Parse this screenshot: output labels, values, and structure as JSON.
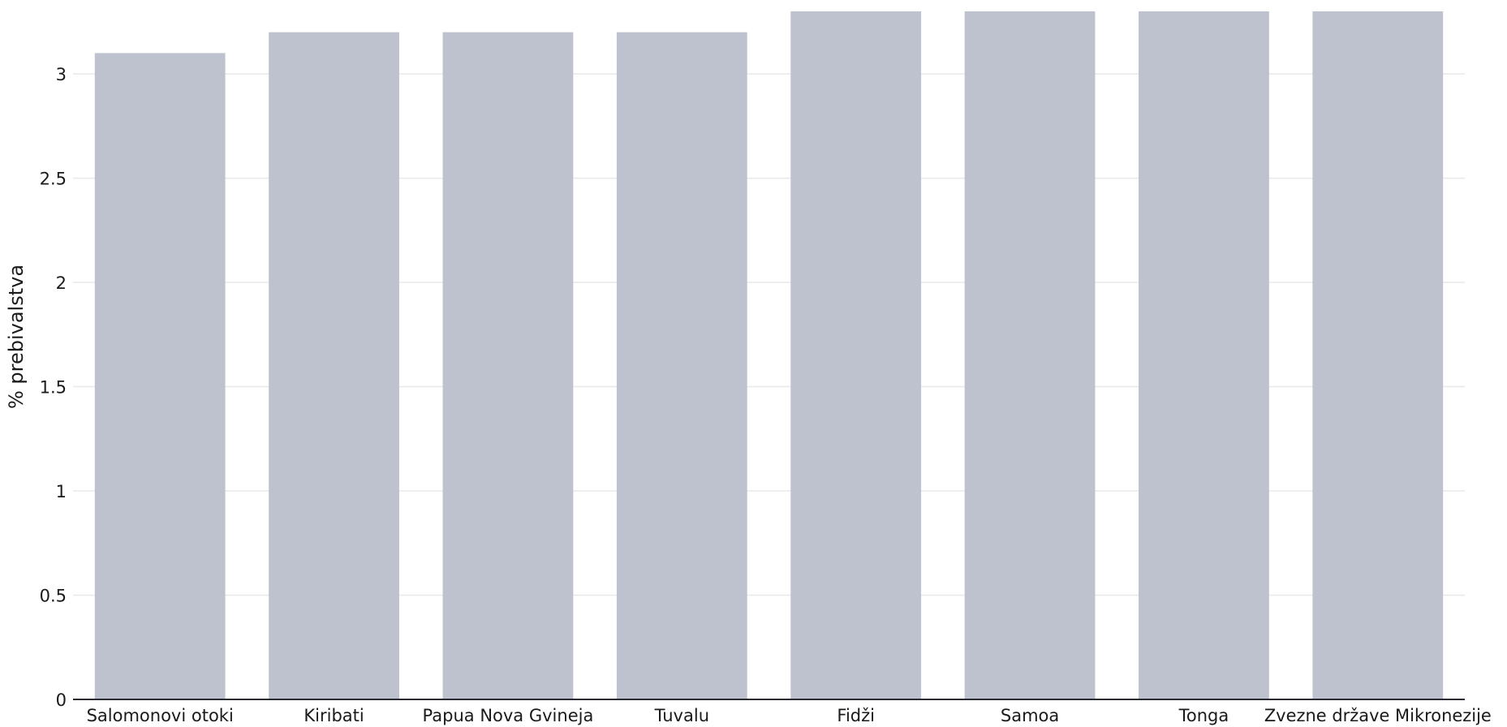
{
  "chart_data": {
    "type": "bar",
    "categories": [
      "Salomonovi otoki",
      "Kiribati",
      "Papua Nova Gvineja",
      "Tuvalu",
      "Fidži",
      "Samoa",
      "Tonga",
      "Zvezne države Mikronezije"
    ],
    "values": [
      3.1,
      3.2,
      3.2,
      3.2,
      3.3,
      3.3,
      3.3,
      3.3
    ],
    "title": "",
    "xlabel": "",
    "ylabel": "% prebivalstva",
    "ylim": [
      0,
      3.3
    ],
    "yticks": [
      0,
      0.5,
      1,
      1.5,
      2,
      2.5,
      3
    ],
    "ytick_labels": [
      "0",
      "0.5",
      "1",
      "1.5",
      "2",
      "2.5",
      "3"
    ],
    "grid": true,
    "bar_color": "#bec2cf",
    "gridline_color": "#e8e8ea",
    "baseline_color": "#2b2b33"
  }
}
